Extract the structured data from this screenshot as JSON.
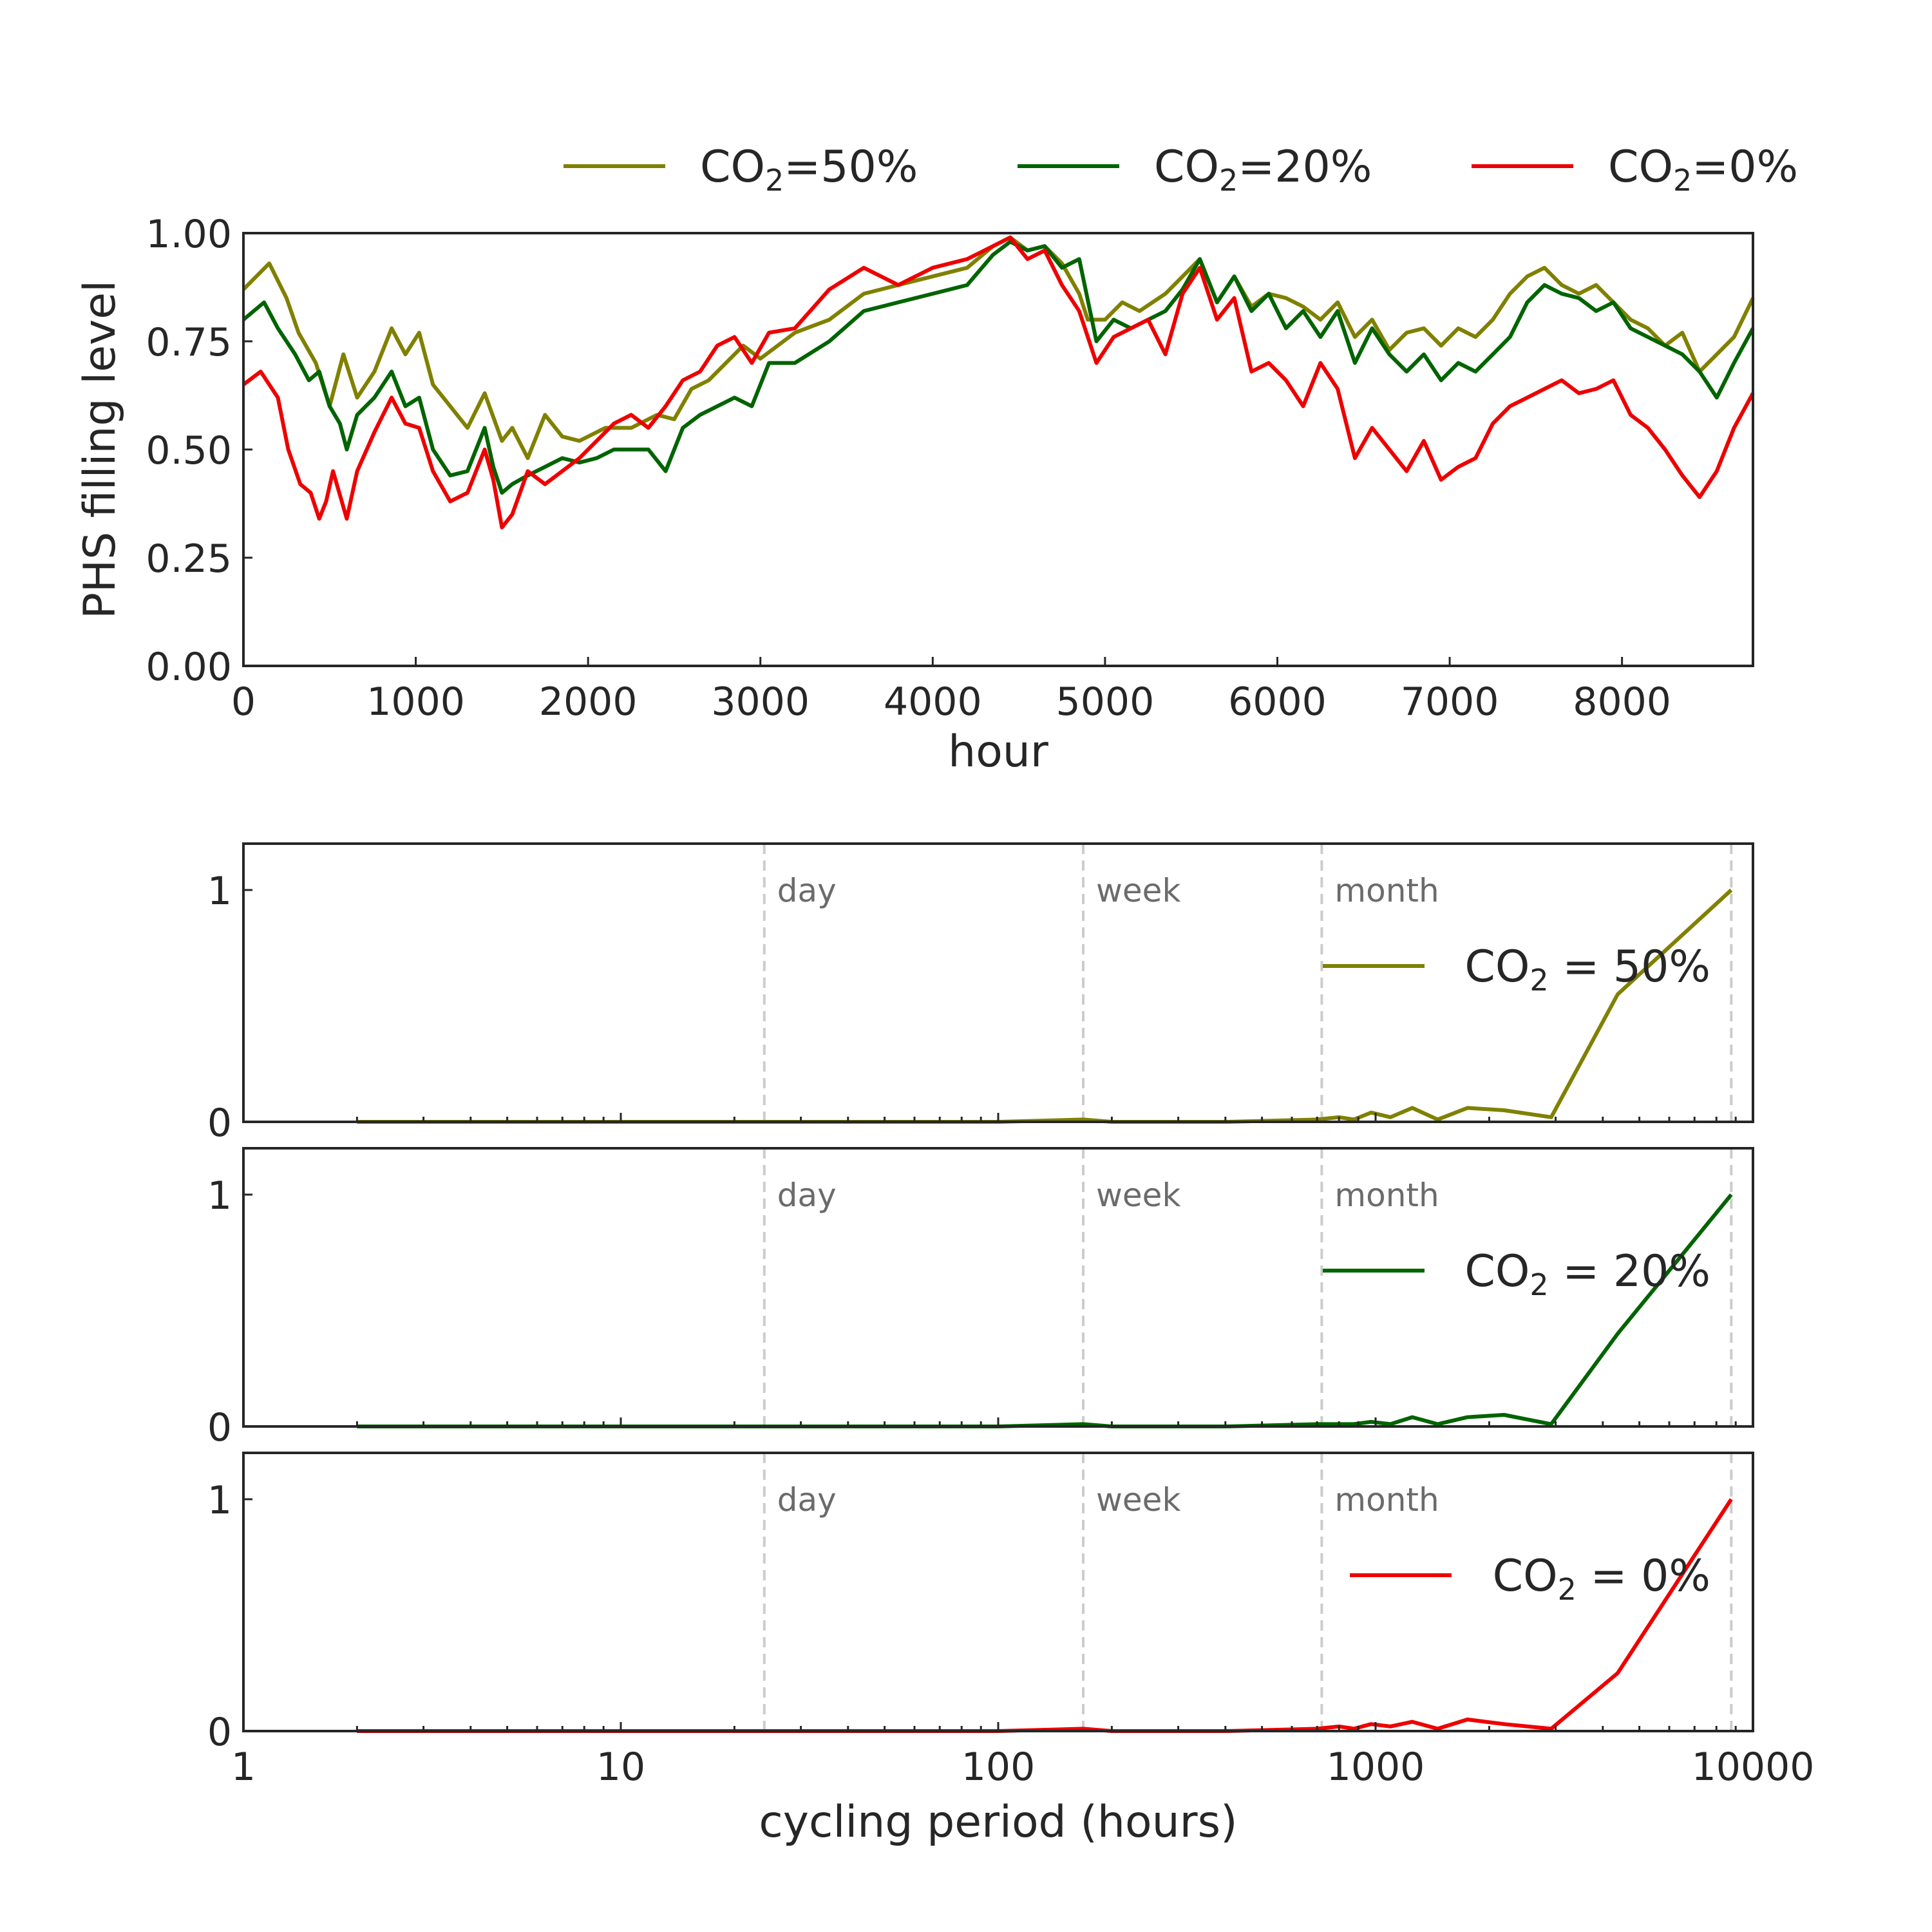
{
  "colors": {
    "co2_50": "#808000",
    "co2_20": "#006400",
    "co2_0": "#ee0000"
  },
  "chart_data": [
    {
      "type": "line",
      "xlabel": "hour",
      "ylabel": "PHS filling level",
      "xlim": [
        0,
        8760
      ],
      "ylim": [
        0,
        1
      ],
      "xticks": [
        "0",
        "1000",
        "2000",
        "3000",
        "4000",
        "5000",
        "6000",
        "7000",
        "8000"
      ],
      "yticks": [
        "0.00",
        "0.25",
        "0.50",
        "0.75",
        "1.00"
      ],
      "legend_placement": "top, above plot",
      "series": [
        {
          "name": "CO2=50%",
          "legend": {
            "prefix": "CO",
            "sub": "2",
            "suffix": "=50%"
          },
          "x": [
            0,
            150,
            250,
            320,
            420,
            500,
            580,
            660,
            760,
            860,
            940,
            1020,
            1100,
            1200,
            1300,
            1400,
            1500,
            1560,
            1650,
            1750,
            1850,
            1950,
            2100,
            2250,
            2400,
            2500,
            2600,
            2700,
            2800,
            2900,
            3000,
            3200,
            3400,
            3600,
            3800,
            4000,
            4200,
            4350,
            4450,
            4550,
            4650,
            4750,
            4850,
            4900,
            5000,
            5100,
            5200,
            5350,
            5450,
            5550,
            5650,
            5750,
            5850,
            5950,
            6050,
            6150,
            6250,
            6350,
            6450,
            6550,
            6650,
            6750,
            6850,
            6950,
            7050,
            7150,
            7250,
            7350,
            7450,
            7550,
            7650,
            7750,
            7850,
            7950,
            8050,
            8150,
            8250,
            8350,
            8450,
            8550,
            8650,
            8760
          ],
          "y": [
            0.87,
            0.93,
            0.85,
            0.77,
            0.7,
            0.6,
            0.72,
            0.62,
            0.68,
            0.78,
            0.72,
            0.77,
            0.65,
            0.6,
            0.55,
            0.63,
            0.52,
            0.55,
            0.48,
            0.58,
            0.53,
            0.52,
            0.55,
            0.55,
            0.58,
            0.57,
            0.64,
            0.66,
            0.7,
            0.74,
            0.71,
            0.77,
            0.8,
            0.86,
            0.88,
            0.9,
            0.92,
            0.97,
            0.99,
            0.96,
            0.97,
            0.93,
            0.86,
            0.8,
            0.8,
            0.84,
            0.82,
            0.86,
            0.9,
            0.94,
            0.84,
            0.9,
            0.83,
            0.86,
            0.85,
            0.83,
            0.8,
            0.84,
            0.76,
            0.8,
            0.73,
            0.77,
            0.78,
            0.74,
            0.78,
            0.76,
            0.8,
            0.86,
            0.9,
            0.92,
            0.88,
            0.86,
            0.88,
            0.84,
            0.8,
            0.78,
            0.74,
            0.77,
            0.68,
            0.72,
            0.76,
            0.85
          ]
        },
        {
          "name": "CO2=20%",
          "legend": {
            "prefix": "CO",
            "sub": "2",
            "suffix": "=20%"
          },
          "x": [
            0,
            120,
            200,
            300,
            380,
            440,
            500,
            560,
            600,
            660,
            760,
            860,
            940,
            1020,
            1100,
            1200,
            1300,
            1400,
            1450,
            1500,
            1560,
            1650,
            1750,
            1850,
            1950,
            2050,
            2150,
            2250,
            2350,
            2450,
            2550,
            2650,
            2750,
            2850,
            2950,
            3050,
            3200,
            3400,
            3600,
            3800,
            4000,
            4200,
            4350,
            4450,
            4550,
            4650,
            4750,
            4850,
            4950,
            5050,
            5150,
            5250,
            5350,
            5450,
            5550,
            5650,
            5750,
            5850,
            5950,
            6050,
            6150,
            6250,
            6350,
            6450,
            6550,
            6650,
            6750,
            6850,
            6950,
            7050,
            7150,
            7250,
            7350,
            7450,
            7550,
            7650,
            7750,
            7850,
            7950,
            8050,
            8150,
            8250,
            8350,
            8450,
            8550,
            8650,
            8760
          ],
          "y": [
            0.8,
            0.84,
            0.78,
            0.72,
            0.66,
            0.68,
            0.6,
            0.56,
            0.5,
            0.58,
            0.62,
            0.68,
            0.6,
            0.62,
            0.5,
            0.44,
            0.45,
            0.55,
            0.46,
            0.4,
            0.42,
            0.44,
            0.46,
            0.48,
            0.47,
            0.48,
            0.5,
            0.5,
            0.5,
            0.45,
            0.55,
            0.58,
            0.6,
            0.62,
            0.6,
            0.7,
            0.7,
            0.75,
            0.82,
            0.84,
            0.86,
            0.88,
            0.95,
            0.98,
            0.96,
            0.97,
            0.92,
            0.94,
            0.75,
            0.8,
            0.78,
            0.8,
            0.82,
            0.87,
            0.94,
            0.84,
            0.9,
            0.82,
            0.86,
            0.78,
            0.82,
            0.76,
            0.82,
            0.7,
            0.78,
            0.72,
            0.68,
            0.72,
            0.66,
            0.7,
            0.68,
            0.72,
            0.76,
            0.84,
            0.88,
            0.86,
            0.85,
            0.82,
            0.84,
            0.78,
            0.76,
            0.74,
            0.72,
            0.68,
            0.62,
            0.7,
            0.78
          ]
        },
        {
          "name": "CO2=0%",
          "legend": {
            "prefix": "CO",
            "sub": "2",
            "suffix": "=0%"
          },
          "x": [
            0,
            100,
            200,
            260,
            330,
            390,
            440,
            480,
            520,
            600,
            660,
            760,
            860,
            940,
            1020,
            1100,
            1200,
            1300,
            1400,
            1450,
            1500,
            1560,
            1650,
            1750,
            1850,
            1950,
            2050,
            2150,
            2250,
            2350,
            2450,
            2550,
            2650,
            2750,
            2850,
            2950,
            3050,
            3200,
            3400,
            3600,
            3800,
            4000,
            4200,
            4350,
            4450,
            4550,
            4650,
            4750,
            4850,
            4950,
            5050,
            5150,
            5250,
            5350,
            5450,
            5550,
            5650,
            5750,
            5850,
            5950,
            6050,
            6150,
            6250,
            6350,
            6450,
            6550,
            6650,
            6750,
            6850,
            6950,
            7050,
            7150,
            7250,
            7350,
            7450,
            7550,
            7650,
            7750,
            7850,
            7950,
            8050,
            8150,
            8250,
            8350,
            8450,
            8550,
            8650,
            8760
          ],
          "y": [
            0.65,
            0.68,
            0.62,
            0.5,
            0.42,
            0.4,
            0.34,
            0.38,
            0.45,
            0.34,
            0.45,
            0.54,
            0.62,
            0.56,
            0.55,
            0.45,
            0.38,
            0.4,
            0.5,
            0.43,
            0.32,
            0.35,
            0.45,
            0.42,
            0.45,
            0.48,
            0.52,
            0.56,
            0.58,
            0.55,
            0.6,
            0.66,
            0.68,
            0.74,
            0.76,
            0.7,
            0.77,
            0.78,
            0.87,
            0.92,
            0.88,
            0.92,
            0.94,
            0.97,
            0.99,
            0.94,
            0.96,
            0.88,
            0.82,
            0.7,
            0.76,
            0.78,
            0.8,
            0.72,
            0.86,
            0.92,
            0.8,
            0.85,
            0.68,
            0.7,
            0.66,
            0.6,
            0.7,
            0.64,
            0.48,
            0.55,
            0.5,
            0.45,
            0.52,
            0.43,
            0.46,
            0.48,
            0.56,
            0.6,
            0.62,
            0.64,
            0.66,
            0.63,
            0.64,
            0.66,
            0.58,
            0.55,
            0.5,
            0.44,
            0.39,
            0.45,
            0.55,
            0.63
          ]
        }
      ]
    },
    {
      "type": "line",
      "xscale": "log",
      "xlim": [
        1,
        10000
      ],
      "ylim": [
        0,
        1.2
      ],
      "yticks": [
        "0",
        "1"
      ],
      "reference_lines": [
        {
          "x": 24,
          "label": "day"
        },
        {
          "x": 168,
          "label": "week"
        },
        {
          "x": 720,
          "label": "month"
        },
        {
          "x": 8760,
          "label": ""
        }
      ],
      "legend_placement": "right",
      "series": [
        {
          "name": "CO2 = 50%",
          "legend": {
            "prefix": "CO",
            "sub": "2",
            "suffix": " = 50%"
          },
          "x": [
            2,
            10,
            24,
            100,
            168,
            200,
            400,
            700,
            800,
            876,
            973,
            1095,
            1251,
            1460,
            1752,
            2190,
            2920,
            4380,
            8760
          ],
          "y": [
            0,
            0,
            0,
            0,
            0.01,
            0,
            0,
            0.01,
            0.02,
            0.01,
            0.04,
            0.02,
            0.06,
            0.01,
            0.06,
            0.05,
            0.02,
            0.55,
            1.0
          ]
        },
        {
          "name": "CO2 = 20%",
          "legend": {
            "prefix": "CO",
            "sub": "2",
            "suffix": " = 20%"
          },
          "x": [
            2,
            10,
            24,
            100,
            168,
            200,
            400,
            700,
            800,
            876,
            973,
            1095,
            1251,
            1460,
            1752,
            2190,
            2920,
            4380,
            8760
          ],
          "y": [
            0,
            0,
            0,
            0,
            0.01,
            0,
            0,
            0.01,
            0.01,
            0.01,
            0.02,
            0.01,
            0.04,
            0.01,
            0.04,
            0.05,
            0.01,
            0.4,
            1.0
          ]
        },
        {
          "name": "CO2 = 0%",
          "legend": {
            "prefix": "CO",
            "sub": "2",
            "suffix": " = 0%"
          },
          "x": [
            2,
            10,
            24,
            100,
            168,
            200,
            400,
            700,
            800,
            876,
            973,
            1095,
            1251,
            1460,
            1752,
            2190,
            2920,
            4380,
            8760
          ],
          "y": [
            0,
            0,
            0,
            0,
            0.01,
            0,
            0,
            0.01,
            0.02,
            0.01,
            0.03,
            0.02,
            0.04,
            0.01,
            0.05,
            0.03,
            0.01,
            0.25,
            1.0
          ]
        }
      ],
      "xticks": [
        "1",
        "10",
        "100",
        "1000",
        "10000"
      ],
      "xlabel": "cycling period (hours)"
    }
  ]
}
